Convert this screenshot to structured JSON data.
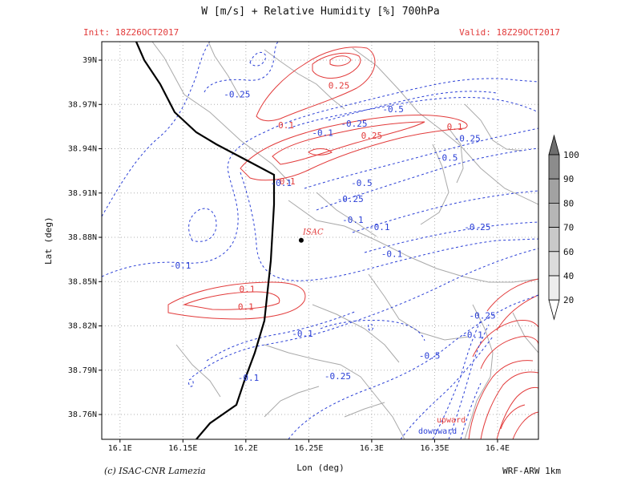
{
  "title": "W [m/s] + Relative Humidity [%] 700hPa",
  "init_label": "Init: 18Z26OCT2017",
  "valid_label": "Valid: 18Z29OCT2017",
  "credit": "(c) ISAC-CNR Lamezia",
  "model_label": "WRF-ARW 1km",
  "xaxis": {
    "label": "Lon (deg)",
    "ticks": [
      {
        "v": 16.1,
        "label": "16.1E"
      },
      {
        "v": 16.15,
        "label": "16.15E"
      },
      {
        "v": 16.2,
        "label": "16.2E"
      },
      {
        "v": 16.25,
        "label": "16.25E"
      },
      {
        "v": 16.3,
        "label": "16.3E"
      },
      {
        "v": 16.35,
        "label": "16.35E"
      },
      {
        "v": 16.4,
        "label": "16.4E"
      }
    ]
  },
  "yaxis": {
    "label": "Lat (deg)",
    "ticks": [
      {
        "v": 38.76,
        "label": "38.76N"
      },
      {
        "v": 38.79,
        "label": "38.79N"
      },
      {
        "v": 38.82,
        "label": "38.82N"
      },
      {
        "v": 38.85,
        "label": "38.85N"
      },
      {
        "v": 38.88,
        "label": "38.88N"
      },
      {
        "v": 38.91,
        "label": "38.91N"
      },
      {
        "v": 38.94,
        "label": "38.94N"
      },
      {
        "v": 38.97,
        "label": "38.97N"
      },
      {
        "v": 39.0,
        "label": "39N"
      }
    ]
  },
  "station": {
    "name": "ISAC",
    "lon": 16.244,
    "lat": 38.878
  },
  "legend": {
    "upward": "upward",
    "downward": "downward",
    "upward_color": "#e23b3b",
    "downward_color": "#2a3fd6"
  },
  "colorbar": {
    "labels": [
      "100",
      "90",
      "80",
      "70",
      "60",
      "40",
      "20"
    ],
    "shades": [
      "#8c8c8c",
      "#a2a2a2",
      "#b6b6b6",
      "#c9c9c9",
      "#dbdbdb",
      "#ededed"
    ]
  },
  "contour_labels": [
    {
      "text": "0.25",
      "lon": 16.274,
      "lat": 38.983,
      "kind": "up"
    },
    {
      "text": "0.1",
      "lon": 16.232,
      "lat": 38.956,
      "kind": "up"
    },
    {
      "text": "0.25",
      "lon": 16.3,
      "lat": 38.949,
      "kind": "up"
    },
    {
      "text": "0.1",
      "lon": 16.366,
      "lat": 38.955,
      "kind": "up"
    },
    {
      "text": "0.1",
      "lon": 16.233,
      "lat": 38.918,
      "kind": "up"
    },
    {
      "text": "0.1",
      "lon": 16.201,
      "lat": 38.845,
      "kind": "up"
    },
    {
      "text": "0.1",
      "lon": 16.2,
      "lat": 38.833,
      "kind": "up"
    },
    {
      "text": "-0.25",
      "lon": 16.193,
      "lat": 38.977,
      "kind": "down"
    },
    {
      "text": "-0.5",
      "lon": 16.317,
      "lat": 38.967,
      "kind": "down"
    },
    {
      "text": "-0.1",
      "lon": 16.261,
      "lat": 38.951,
      "kind": "down"
    },
    {
      "text": "-0.25",
      "lon": 16.286,
      "lat": 38.957,
      "kind": "down"
    },
    {
      "text": "-0.25",
      "lon": 16.376,
      "lat": 38.947,
      "kind": "down"
    },
    {
      "text": "-0.5",
      "lon": 16.36,
      "lat": 38.934,
      "kind": "down"
    },
    {
      "text": "-0.1",
      "lon": 16.228,
      "lat": 38.917,
      "kind": "down"
    },
    {
      "text": "-0.5",
      "lon": 16.292,
      "lat": 38.917,
      "kind": "down"
    },
    {
      "text": "-0.25",
      "lon": 16.283,
      "lat": 38.906,
      "kind": "down"
    },
    {
      "text": "-0.1",
      "lon": 16.285,
      "lat": 38.892,
      "kind": "down"
    },
    {
      "text": "-0.1",
      "lon": 16.306,
      "lat": 38.887,
      "kind": "down"
    },
    {
      "text": "-0.25",
      "lon": 16.384,
      "lat": 38.887,
      "kind": "down"
    },
    {
      "text": "-0.1",
      "lon": 16.316,
      "lat": 38.869,
      "kind": "down"
    },
    {
      "text": "-0.1",
      "lon": 16.148,
      "lat": 38.861,
      "kind": "down"
    },
    {
      "text": "-0.25",
      "lon": 16.388,
      "lat": 38.827,
      "kind": "down"
    },
    {
      "text": "-0.1",
      "lon": 16.38,
      "lat": 38.814,
      "kind": "down"
    },
    {
      "text": "-0.1",
      "lon": 16.245,
      "lat": 38.815,
      "kind": "down"
    },
    {
      "text": "-0.5",
      "lon": 16.346,
      "lat": 38.8,
      "kind": "down"
    },
    {
      "text": "-0.25",
      "lon": 16.273,
      "lat": 38.786,
      "kind": "down"
    },
    {
      "text": "-0.1",
      "lon": 16.202,
      "lat": 38.785,
      "kind": "down"
    }
  ]
}
